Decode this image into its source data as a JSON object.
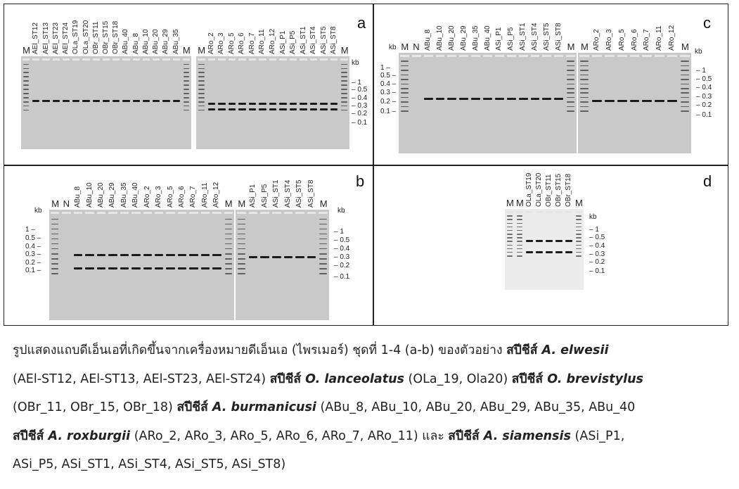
{
  "panels": {
    "a": {
      "label": "a",
      "kb_label": "kb",
      "ladder": [
        "1",
        "0.5",
        "0.4",
        "0.3",
        "0.2",
        "0.1"
      ],
      "gels": [
        {
          "lanes": [
            "M",
            "AEl_ST12",
            "AEl_ST13",
            "AEl_ST23",
            "AEl_ST24",
            "OLa_ST19",
            "OLa_ST20",
            "OBr_ST11",
            "OBr_ST15",
            "OBr_ST18",
            "ABu_40",
            "ABu_8",
            "ABu_10",
            "ABu_20",
            "ABu_29",
            "ABu_35",
            "M"
          ]
        },
        {
          "lanes": [
            "M",
            "ARo_2",
            "ARo_3",
            "ARo_5",
            "ARo_6",
            "ARo_7",
            "ARo_11",
            "ARo_12",
            "ASi_P1",
            "ASi_P5",
            "ASi_ST1",
            "ASi_ST4",
            "ASi_ST5",
            "ASi_ST8",
            "M"
          ]
        }
      ]
    },
    "b": {
      "label": "b",
      "kb_label": "kb",
      "ladder": [
        "1",
        "0.5",
        "0.4",
        "0.3",
        "0.2",
        "0.1"
      ],
      "gels": [
        {
          "lanes": [
            "M",
            "N",
            "ABu_8",
            "ABu_10",
            "ABu_20",
            "ABu_29",
            "ABu_35",
            "ABu_40",
            "ARo_2",
            "ARo_3",
            "ARo_5",
            "ARo_6",
            "ARo_7",
            "ARo_11",
            "ARo_12",
            "M"
          ]
        },
        {
          "lanes": [
            "M",
            "ASi_P1",
            "ASi_P5",
            "ASi_ST1",
            "ASi_ST4",
            "ASi_ST5",
            "ASi_ST8",
            "M"
          ]
        }
      ]
    },
    "c": {
      "label": "c",
      "kb_label": "kb",
      "ladder": [
        "1",
        "0.5",
        "0.4",
        "0.3",
        "0.2",
        "0.1"
      ],
      "gels": [
        {
          "lanes": [
            "M",
            "N",
            "ABu_8",
            "ABu_10",
            "ABu_20",
            "ABu_29",
            "ABu_35",
            "ABu_40",
            "ASi_P1",
            "ASi_P5",
            "ASi_ST1",
            "ASi_ST4",
            "ASi_ST5",
            "ASi_ST8",
            "M"
          ]
        },
        {
          "lanes": [
            "M",
            "ARo_2",
            "ARo_3",
            "ARo_5",
            "ARo_6",
            "ARo_7",
            "ARo_11",
            "ARo_12",
            "M"
          ]
        }
      ]
    },
    "d": {
      "label": "d",
      "kb_label": "kb",
      "ladder": [
        "1",
        "0.5",
        "0.4",
        "0.3",
        "0.2",
        "0.1"
      ],
      "gels": [
        {
          "lanes": [
            "M",
            "M",
            "OLa_ST19",
            "OLa_ST20",
            "OBr_ST11",
            "OBr_ST15",
            "OBr_ST18",
            "M"
          ]
        }
      ]
    }
  },
  "caption": [
    [
      {
        "t": "รูปแสดงแถบดีเอ็นเอที่เกิดขึ้นจากเครื่องหมายดีเอ็นเอ (ไพรเมอร์) ชุดที่ 1-4 (a-b) ของตัวอย่าง ",
        "s": ""
      },
      {
        "t": "สปีชีส์ ",
        "s": "b"
      },
      {
        "t": "A. elwesii",
        "s": "b i"
      }
    ],
    [
      {
        "t": "(AEl-ST12, AEl-ST13, AEl-ST23, AEl-ST24) ",
        "s": ""
      },
      {
        "t": "สปีชีส์ ",
        "s": "b"
      },
      {
        "t": "O. lanceolatus",
        "s": "b i"
      },
      {
        "t": " (OLa_19, Ola20) ",
        "s": ""
      },
      {
        "t": "สปีชีส์ ",
        "s": "b"
      },
      {
        "t": "O. brevistylus",
        "s": "b i"
      }
    ],
    [
      {
        "t": "(OBr_11, OBr_15, OBr_18) ",
        "s": ""
      },
      {
        "t": "สปีชีส์ ",
        "s": "b"
      },
      {
        "t": "A. burmanicusi",
        "s": "b i"
      },
      {
        "t": " (ABu_8, ABu_10, ABu_20, ABu_29, ABu_35, ABu_40",
        "s": ""
      }
    ],
    [
      {
        "t": "สปีชีส์ ",
        "s": "b"
      },
      {
        "t": "A. roxburgii",
        "s": "b i"
      },
      {
        "t": " (ARo_2, ARo_3, ARo_5, ARo_6, ARo_7, ARo_11) และ ",
        "s": ""
      },
      {
        "t": "สปีชีส์ ",
        "s": "b"
      },
      {
        "t": "A. siamensis",
        "s": "b i"
      },
      {
        "t": " (ASi_P1,",
        "s": ""
      }
    ],
    [
      {
        "t": "ASi_P5, ASi_ST1, ASi_ST4, ASi_ST5, ASi_ST8)",
        "s": ""
      }
    ]
  ]
}
